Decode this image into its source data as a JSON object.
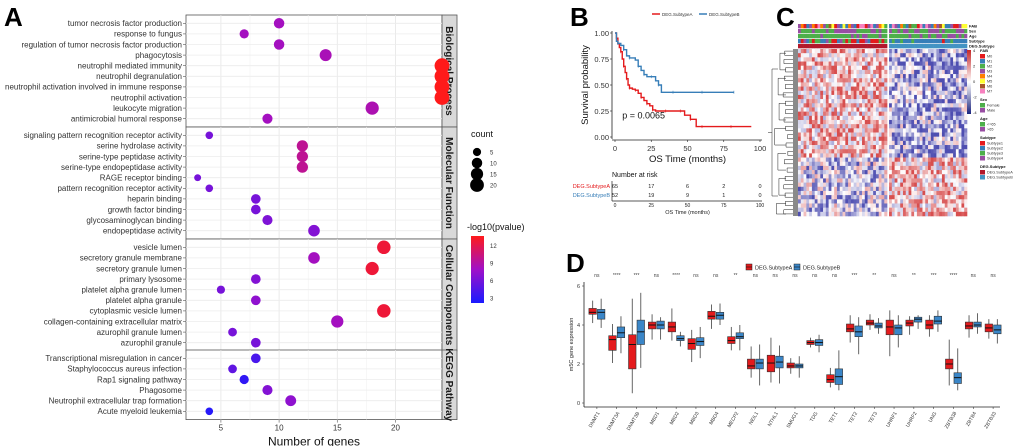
{
  "figure": {
    "panels": [
      "A",
      "B",
      "C",
      "D"
    ]
  },
  "chart_data": [
    {
      "panel": "A",
      "type": "scatter",
      "title": "",
      "xlabel": "Number of genes",
      "ylabel": "",
      "xlim": [
        2,
        24
      ],
      "xticks": [
        5,
        10,
        15,
        20
      ],
      "grid": true,
      "size_legend": {
        "title": "count",
        "values": [
          5,
          10,
          15,
          20
        ]
      },
      "color_legend": {
        "title": "-log10(pvalue)",
        "ticks": [
          3,
          6,
          9,
          12
        ],
        "range": [
          2.5,
          14
        ],
        "low_color": "#1a1aff",
        "high_color": "#ff1a1a"
      },
      "facets": [
        {
          "name": "Biological Process",
          "terms": [
            {
              "term": "tumor necrosis factor production",
              "count": 10,
              "logp": 8.5
            },
            {
              "term": "response to fungus",
              "count": 7,
              "logp": 8.5
            },
            {
              "term": "regulation of tumor necrosis factor production",
              "count": 10,
              "logp": 8.5
            },
            {
              "term": "phagocytosis",
              "count": 14,
              "logp": 8.8
            },
            {
              "term": "neutrophil mediated immunity",
              "count": 24,
              "logp": 14
            },
            {
              "term": "neutrophil degranulation",
              "count": 24,
              "logp": 14
            },
            {
              "term": "neutrophil activation involved in immune response",
              "count": 24,
              "logp": 14
            },
            {
              "term": "neutrophil activation",
              "count": 24,
              "logp": 14
            },
            {
              "term": "leukocyte migration",
              "count": 18,
              "logp": 9
            },
            {
              "term": "antimicrobial humoral response",
              "count": 9,
              "logp": 8.5
            }
          ]
        },
        {
          "name": "Molecular Function",
          "terms": [
            {
              "term": "signaling pattern recognition receptor activity",
              "count": 4,
              "logp": 6.5
            },
            {
              "term": "serine hydrolase activity",
              "count": 12,
              "logp": 10
            },
            {
              "term": "serine-type peptidase activity",
              "count": 12,
              "logp": 10
            },
            {
              "term": "serine-type endopeptidase activity",
              "count": 12,
              "logp": 10
            },
            {
              "term": "RAGE receptor binding",
              "count": 3,
              "logp": 6.5
            },
            {
              "term": "pattern recognition receptor activity",
              "count": 4,
              "logp": 6.5
            },
            {
              "term": "heparin binding",
              "count": 8,
              "logp": 6.5
            },
            {
              "term": "growth factor binding",
              "count": 8,
              "logp": 6.5
            },
            {
              "term": "glycosaminoglycan binding",
              "count": 9,
              "logp": 6.8
            },
            {
              "term": "endopeptidase activity",
              "count": 13,
              "logp": 7
            }
          ]
        },
        {
          "name": "Cellular Components",
          "terms": [
            {
              "term": "vesicle lumen",
              "count": 19,
              "logp": 13
            },
            {
              "term": "secretory granule membrane",
              "count": 13,
              "logp": 8.5
            },
            {
              "term": "secretory granule lumen",
              "count": 18,
              "logp": 13
            },
            {
              "term": "primary lysosome",
              "count": 8,
              "logp": 7
            },
            {
              "term": "platelet alpha granule lumen",
              "count": 5,
              "logp": 6.5
            },
            {
              "term": "platelet alpha granule",
              "count": 8,
              "logp": 7.5
            },
            {
              "term": "cytoplasmic vesicle lumen",
              "count": 19,
              "logp": 13
            },
            {
              "term": "collagen-containing extracellular matrix",
              "count": 15,
              "logp": 8.5
            },
            {
              "term": "azurophil granule lumen",
              "count": 6,
              "logp": 6.5
            },
            {
              "term": "azurophil granule",
              "count": 8,
              "logp": 6.5
            }
          ]
        },
        {
          "name": "KEGG Pathway",
          "terms": [
            {
              "term": "Transcriptional misregulation in cancer",
              "count": 8,
              "logp": 4.5
            },
            {
              "term": "Staphylococcus aureus infection",
              "count": 6,
              "logp": 5.5
            },
            {
              "term": "Rap1 signaling pathway",
              "count": 7,
              "logp": 3.5
            },
            {
              "term": "Phagosome",
              "count": 9,
              "logp": 7
            },
            {
              "term": "Neutrophil extracellular trap formation",
              "count": 11,
              "logp": 7.5
            },
            {
              "term": "Acute myeloid leukemia",
              "count": 4,
              "logp": 3
            }
          ]
        }
      ]
    },
    {
      "panel": "B",
      "type": "line",
      "title": "",
      "xlabel": "OS Time (months)",
      "ylabel": "Survival probability",
      "xlim": [
        0,
        100
      ],
      "ylim": [
        0,
        1
      ],
      "xticks": [
        0,
        25,
        50,
        75,
        100
      ],
      "yticks": [
        "0.00",
        "0.25",
        "0.50",
        "0.75",
        "1.00"
      ],
      "annotation": "p = 0.0065",
      "legend": [
        "DEG.SubtypeA",
        "DEG.SubtypeB"
      ],
      "legend_position": "top",
      "series": [
        {
          "name": "DEG.SubtypeA",
          "color": "#e41a1c",
          "x": [
            0,
            1,
            2,
            3,
            4,
            5,
            6,
            7,
            8,
            9,
            10,
            12,
            14,
            16,
            18,
            20,
            22,
            24,
            26,
            28,
            35,
            40,
            45,
            48,
            52,
            56,
            60,
            70,
            80,
            94
          ],
          "y": [
            1.0,
            0.95,
            0.9,
            0.86,
            0.82,
            0.75,
            0.68,
            0.62,
            0.56,
            0.5,
            0.47,
            0.46,
            0.45,
            0.42,
            0.38,
            0.35,
            0.32,
            0.3,
            0.26,
            0.25,
            0.25,
            0.25,
            0.25,
            0.21,
            0.17,
            0.1,
            0.1,
            0.1,
            0.1,
            0.1
          ]
        },
        {
          "name": "DEG.SubtypeB",
          "color": "#377eb8",
          "x": [
            0,
            1,
            2,
            4,
            6,
            8,
            10,
            14,
            16,
            18,
            20,
            22,
            25,
            28,
            30,
            32,
            40,
            50,
            60,
            70,
            82
          ],
          "y": [
            1.0,
            0.92,
            0.9,
            0.88,
            0.84,
            0.78,
            0.76,
            0.74,
            0.68,
            0.64,
            0.6,
            0.58,
            0.58,
            0.54,
            0.5,
            0.43,
            0.43,
            0.43,
            0.43,
            0.43,
            0.43
          ]
        }
      ],
      "risk_table": {
        "title": "Number at risk",
        "xlabel": "OS Time (months)",
        "times": [
          0,
          25,
          50,
          75,
          100
        ],
        "rows": [
          {
            "group": "DEG.SubtypeA",
            "color": "#e41a1c",
            "values": [
              65,
              17,
              6,
              2,
              0
            ]
          },
          {
            "group": "DEG.SubtypeB",
            "color": "#377eb8",
            "values": [
              52,
              19,
              9,
              1,
              0
            ]
          }
        ]
      }
    },
    {
      "panel": "C",
      "type": "heatmap",
      "title": "",
      "colorbar": {
        "ticks": [
          "4",
          "2",
          "0",
          "-2",
          "-4"
        ],
        "low": "#1a237e",
        "mid": "#ffffff",
        "high": "#c62828"
      },
      "annotation_rows": [
        "FAB",
        "Sex",
        "Age",
        "Subtype",
        "DEG.Subtype"
      ],
      "legends": [
        {
          "title": "FAB",
          "items": [
            {
              "label": "M0",
              "color": "#e41a1c"
            },
            {
              "label": "M1",
              "color": "#377eb8"
            },
            {
              "label": "M2",
              "color": "#4daf4a"
            },
            {
              "label": "M3",
              "color": "#984ea3"
            },
            {
              "label": "M4",
              "color": "#ff7f00"
            },
            {
              "label": "M5",
              "color": "#ffff33"
            },
            {
              "label": "M6",
              "color": "#a65628"
            },
            {
              "label": "M7",
              "color": "#f781bf"
            }
          ]
        },
        {
          "title": "Sex",
          "items": [
            {
              "label": "Female",
              "color": "#4daf4a"
            },
            {
              "label": "Male",
              "color": "#984ea3"
            }
          ]
        },
        {
          "title": "Age",
          "items": [
            {
              "label": "<=65",
              "color": "#4daf4a"
            },
            {
              "label": ">65",
              "color": "#984ea3"
            }
          ]
        },
        {
          "title": "Subtype",
          "items": [
            {
              "label": "Subtype1",
              "color": "#e41a1c"
            },
            {
              "label": "Subtype2",
              "color": "#377eb8"
            },
            {
              "label": "Subtype3",
              "color": "#4daf4a"
            },
            {
              "label": "Subtype4",
              "color": "#984ea3"
            }
          ]
        },
        {
          "title": "DEG.Subtype",
          "items": [
            {
              "label": "DEG.SubtypeA",
              "color": "#b2182b"
            },
            {
              "label": "DEG.SubtypeB",
              "color": "#4393c3"
            }
          ]
        }
      ]
    },
    {
      "panel": "D",
      "type": "bar",
      "subtype": "boxplot",
      "title": "",
      "xlabel": "",
      "ylabel": "m5C gene expression",
      "ylim": [
        0,
        6.2
      ],
      "yticks": [
        0,
        2,
        4,
        6
      ],
      "legend": [
        "DEG.SubtypeA",
        "DEG.SubtypeB"
      ],
      "legend_position": "top",
      "colors": {
        "DEG.SubtypeA": "#e41a1c",
        "DEG.SubtypeB": "#3a86c8"
      },
      "categories": [
        "DNMT1",
        "DNMT3A",
        "DNMT3B",
        "MBD1",
        "MBD2",
        "MBD3",
        "MBD4",
        "MECP2",
        "NEIL1",
        "NTHL1",
        "SMUG1",
        "TDG",
        "TET1",
        "TET2",
        "TET3",
        "UHRF1",
        "UHRF2",
        "UNG",
        "ZBTB38",
        "ZBTB4",
        "ZBTB33"
      ],
      "significance": [
        "ns",
        "****",
        "***",
        "ns",
        "****",
        "ns",
        "ns",
        "**",
        "ns",
        "ns",
        "ns",
        "ns",
        "ns",
        "***",
        "**",
        "ns",
        "**",
        "***",
        "****",
        "ns",
        "ns"
      ],
      "series": [
        {
          "name": "DEG.SubtypeA",
          "boxes": [
            [
              4.1,
              4.55,
              4.65,
              4.85,
              5.25
            ],
            [
              2.05,
              2.7,
              3.25,
              3.45,
              4.05
            ],
            [
              0.5,
              1.75,
              3.0,
              3.5,
              5.35
            ],
            [
              3.25,
              3.8,
              4.0,
              4.15,
              4.55
            ],
            [
              3.2,
              3.65,
              3.9,
              4.15,
              4.85
            ],
            [
              2.1,
              2.75,
              3.05,
              3.3,
              3.75
            ],
            [
              3.8,
              4.3,
              4.45,
              4.7,
              5.05
            ],
            [
              2.7,
              3.05,
              3.2,
              3.4,
              3.9
            ],
            [
              1.3,
              1.75,
              1.9,
              2.25,
              2.9
            ],
            [
              1.05,
              1.6,
              2.05,
              2.45,
              3.35
            ],
            [
              1.5,
              1.8,
              1.9,
              2.05,
              2.3
            ],
            [
              2.85,
              3.0,
              3.1,
              3.2,
              3.35
            ],
            [
              0.8,
              1.05,
              1.2,
              1.45,
              1.8
            ],
            [
              3.1,
              3.65,
              3.8,
              4.05,
              4.5
            ],
            [
              3.75,
              4.0,
              4.1,
              4.25,
              4.55
            ],
            [
              2.4,
              3.5,
              3.9,
              4.25,
              4.75
            ],
            [
              3.5,
              3.95,
              4.1,
              4.25,
              4.45
            ],
            [
              3.4,
              3.8,
              4.0,
              4.25,
              4.5
            ],
            [
              0.9,
              1.75,
              2.0,
              2.25,
              3.25
            ],
            [
              3.35,
              3.8,
              3.95,
              4.15,
              4.5
            ],
            [
              3.3,
              3.65,
              3.85,
              4.05,
              4.3
            ]
          ]
        },
        {
          "name": "DEG.SubtypeB",
          "boxes": [
            [
              3.85,
              4.3,
              4.65,
              4.8,
              5.35
            ],
            [
              2.55,
              3.35,
              3.6,
              3.9,
              4.45
            ],
            [
              1.8,
              3.0,
              3.65,
              4.25,
              5.65
            ],
            [
              3.25,
              3.8,
              4.0,
              4.2,
              4.4
            ],
            [
              2.9,
              3.2,
              3.3,
              3.45,
              3.65
            ],
            [
              2.3,
              2.95,
              3.15,
              3.35,
              3.9
            ],
            [
              4.0,
              4.3,
              4.5,
              4.65,
              5.1
            ],
            [
              2.7,
              3.3,
              3.4,
              3.6,
              4.0
            ],
            [
              0.9,
              1.75,
              2.05,
              2.25,
              3.0
            ],
            [
              1.0,
              1.8,
              2.1,
              2.4,
              2.95
            ],
            [
              1.3,
              1.8,
              1.9,
              2.0,
              2.4
            ],
            [
              2.6,
              2.95,
              3.1,
              3.25,
              3.5
            ],
            [
              0.65,
              0.95,
              1.35,
              1.75,
              2.7
            ],
            [
              2.5,
              3.4,
              3.65,
              3.95,
              4.4
            ],
            [
              3.55,
              3.85,
              3.95,
              4.1,
              4.35
            ],
            [
              2.85,
              3.5,
              3.85,
              4.0,
              4.5
            ],
            [
              3.8,
              4.15,
              4.3,
              4.4,
              4.5
            ],
            [
              3.65,
              4.05,
              4.2,
              4.45,
              4.75
            ],
            [
              0.65,
              1.0,
              1.3,
              1.55,
              2.8
            ],
            [
              3.55,
              3.9,
              4.0,
              4.15,
              4.6
            ],
            [
              3.05,
              3.55,
              3.75,
              4.0,
              4.3
            ]
          ]
        }
      ]
    }
  ]
}
